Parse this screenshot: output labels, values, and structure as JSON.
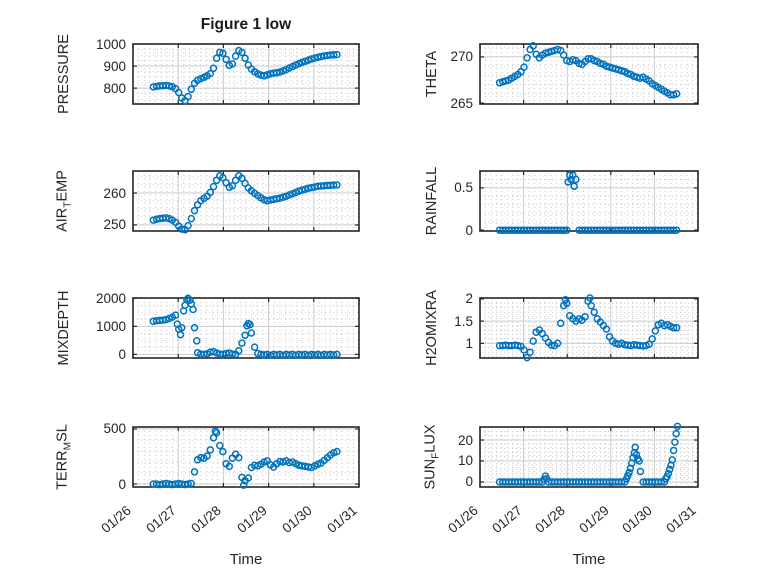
{
  "title": "Figure 1 low",
  "x_axis": {
    "label": "Time",
    "tick_labels": [
      "01/26",
      "01/27",
      "01/28",
      "01/29",
      "01/30",
      "01/31"
    ],
    "tick_positions": [
      0,
      1,
      2,
      3,
      4,
      5
    ],
    "lim": [
      0,
      5
    ],
    "minor_step": 0.125
  },
  "style": {
    "marker_color": "#0072BD",
    "axis_color": "#262626",
    "grid_color": "#cbcbcb",
    "minor_grid_color": "#c7c7c7",
    "background": "#ffffff"
  },
  "chart_data": [
    {
      "type": "scatter",
      "id": "pressure",
      "ylabel": "PRESSURE",
      "ylabel_segments": [
        {
          "t": "PRESSURE"
        }
      ],
      "yticks": [
        800,
        900,
        1000
      ],
      "ylim": [
        728,
        1000
      ],
      "y_minor_step": 25,
      "x": [
        0.45,
        0.52,
        0.59,
        0.66,
        0.73,
        0.8,
        0.87,
        0.94,
        1.01,
        1.08,
        1.15,
        1.22,
        1.29,
        1.36,
        1.43,
        1.5,
        1.57,
        1.64,
        1.71,
        1.78,
        1.85,
        1.92,
        1.99,
        2.06,
        2.13,
        2.2,
        2.27,
        2.34,
        2.41,
        2.48,
        2.55,
        2.62,
        2.69,
        2.76,
        2.83,
        2.9,
        2.97,
        3.04,
        3.11,
        3.18,
        3.25,
        3.32,
        3.39,
        3.46,
        3.53,
        3.6,
        3.67,
        3.74,
        3.81,
        3.88,
        3.95,
        4.02,
        4.09,
        4.16,
        4.23,
        4.3,
        4.37,
        4.44,
        4.51
      ],
      "y": [
        805,
        808,
        810,
        811,
        812,
        810,
        806,
        798,
        780,
        755,
        743,
        762,
        795,
        822,
        836,
        843,
        849,
        856,
        866,
        890,
        935,
        962,
        958,
        930,
        903,
        910,
        945,
        970,
        962,
        935,
        905,
        886,
        874,
        865,
        859,
        856,
        860,
        865,
        868,
        870,
        873,
        878,
        884,
        891,
        898,
        905,
        911,
        917,
        922,
        927,
        932,
        936,
        940,
        943,
        946,
        948,
        950,
        951,
        952
      ]
    },
    {
      "type": "scatter",
      "id": "theta",
      "ylabel": "THETA",
      "ylabel_segments": [
        {
          "t": "THETA"
        }
      ],
      "yticks": [
        265,
        270
      ],
      "ylim": [
        264.9,
        271.4
      ],
      "y_minor_step": 1,
      "x": [
        0.45,
        0.52,
        0.59,
        0.66,
        0.73,
        0.8,
        0.87,
        0.94,
        1.01,
        1.08,
        1.15,
        1.22,
        1.29,
        1.36,
        1.43,
        1.5,
        1.57,
        1.64,
        1.71,
        1.78,
        1.85,
        1.92,
        1.99,
        2.06,
        2.13,
        2.2,
        2.27,
        2.34,
        2.41,
        2.48,
        2.55,
        2.62,
        2.69,
        2.76,
        2.83,
        2.9,
        2.97,
        3.04,
        3.11,
        3.18,
        3.25,
        3.32,
        3.39,
        3.46,
        3.53,
        3.6,
        3.67,
        3.74,
        3.81,
        3.88,
        3.95,
        4.02,
        4.09,
        4.16,
        4.23,
        4.3,
        4.37,
        4.44,
        4.51
      ],
      "y": [
        267.2,
        267.3,
        267.4,
        267.5,
        267.7,
        267.9,
        268.1,
        268.4,
        268.9,
        269.9,
        270.8,
        271.2,
        270.3,
        269.9,
        270.2,
        270.4,
        270.5,
        270.6,
        270.7,
        270.8,
        270.7,
        270.2,
        269.6,
        269.5,
        269.7,
        269.6,
        269.3,
        269.2,
        269.5,
        269.8,
        269.8,
        269.6,
        269.5,
        269.3,
        269.2,
        269.0,
        268.9,
        268.8,
        268.7,
        268.6,
        268.5,
        268.4,
        268.2,
        268.1,
        267.9,
        267.8,
        267.7,
        267.8,
        267.6,
        267.4,
        267.1,
        266.9,
        266.7,
        266.5,
        266.3,
        266.1,
        265.9,
        265.9,
        266.0
      ]
    },
    {
      "type": "scatter",
      "id": "air-temp",
      "ylabel": "AIR_TEMP",
      "ylabel_segments": [
        {
          "t": "AIR"
        },
        {
          "sub": "T"
        },
        {
          "t": "EMP"
        }
      ],
      "yticks": [
        250,
        260
      ],
      "ylim": [
        248.1,
        266.9
      ],
      "y_minor_step": 2.5,
      "x": [
        0.45,
        0.52,
        0.59,
        0.66,
        0.73,
        0.8,
        0.87,
        0.94,
        1.01,
        1.08,
        1.15,
        1.22,
        1.29,
        1.36,
        1.43,
        1.5,
        1.57,
        1.64,
        1.71,
        1.78,
        1.85,
        1.92,
        1.99,
        2.06,
        2.13,
        2.2,
        2.27,
        2.34,
        2.41,
        2.48,
        2.55,
        2.62,
        2.69,
        2.76,
        2.83,
        2.9,
        2.97,
        3.04,
        3.11,
        3.18,
        3.25,
        3.32,
        3.39,
        3.46,
        3.53,
        3.6,
        3.67,
        3.74,
        3.81,
        3.88,
        3.95,
        4.02,
        4.09,
        4.16,
        4.23,
        4.3,
        4.37,
        4.44,
        4.51
      ],
      "y": [
        251.5,
        251.8,
        252.0,
        252.1,
        252.2,
        252.0,
        251.5,
        250.8,
        249.6,
        248.7,
        248.5,
        249.8,
        252.0,
        254.5,
        256.3,
        257.6,
        258.3,
        259.0,
        260.2,
        262.0,
        264.0,
        265.4,
        264.8,
        263.2,
        261.8,
        262.3,
        264.0,
        265.4,
        264.6,
        263.0,
        261.6,
        260.7,
        259.9,
        259.2,
        258.5,
        257.9,
        257.6,
        257.8,
        258.0,
        258.2,
        258.4,
        258.7,
        259.0,
        259.4,
        259.8,
        260.2,
        260.6,
        260.9,
        261.2,
        261.5,
        261.7,
        261.9,
        262.1,
        262.2,
        262.3,
        262.4,
        262.4,
        262.5,
        262.5
      ]
    },
    {
      "type": "scatter",
      "id": "rainfall",
      "ylabel": "RAINFALL",
      "ylabel_segments": [
        {
          "t": "RAINFALL"
        }
      ],
      "yticks": [
        0,
        0.5
      ],
      "ylim": [
        -0.01,
        0.7
      ],
      "y_minor_step": 0.1,
      "x": [
        0.45,
        0.52,
        0.59,
        0.66,
        0.73,
        0.8,
        0.87,
        0.94,
        1.01,
        1.08,
        1.15,
        1.22,
        1.29,
        1.36,
        1.43,
        1.5,
        1.57,
        1.64,
        1.71,
        1.78,
        1.85,
        1.92,
        1.99,
        2.02,
        2.06,
        2.09,
        2.13,
        2.16,
        2.2,
        2.27,
        2.34,
        2.41,
        2.48,
        2.55,
        2.62,
        2.69,
        2.76,
        2.83,
        2.9,
        2.97,
        3.04,
        3.11,
        3.18,
        3.25,
        3.32,
        3.39,
        3.46,
        3.53,
        3.6,
        3.67,
        3.74,
        3.81,
        3.88,
        3.95,
        4.02,
        4.09,
        4.16,
        4.23,
        4.3,
        4.37,
        4.44,
        4.51
      ],
      "y": [
        0,
        0,
        0,
        0,
        0,
        0,
        0,
        0,
        0,
        0,
        0,
        0,
        0,
        0,
        0,
        0,
        0,
        0,
        0,
        0,
        0,
        0,
        0,
        0.57,
        0.65,
        0.6,
        0.65,
        0.52,
        0.6,
        0,
        0,
        0,
        0,
        0,
        0,
        0,
        0,
        0,
        0,
        0,
        0,
        0,
        0,
        0,
        0,
        0,
        0,
        0,
        0,
        0,
        0,
        0,
        0,
        0,
        0,
        0,
        0,
        0,
        0,
        0,
        0,
        0
      ]
    },
    {
      "type": "scatter",
      "id": "mixdepth",
      "ylabel": "MIXDEPTH",
      "ylabel_segments": [
        {
          "t": "MIXDEPTH"
        }
      ],
      "yticks": [
        0,
        1000,
        2000
      ],
      "ylim": [
        -130,
        2010
      ],
      "y_minor_step": 250,
      "x": [
        0.45,
        0.52,
        0.59,
        0.66,
        0.73,
        0.8,
        0.87,
        0.94,
        0.98,
        1.01,
        1.05,
        1.08,
        1.12,
        1.15,
        1.19,
        1.22,
        1.26,
        1.29,
        1.33,
        1.36,
        1.41,
        1.43,
        1.5,
        1.57,
        1.64,
        1.71,
        1.78,
        1.85,
        1.92,
        1.99,
        2.06,
        2.13,
        2.2,
        2.27,
        2.34,
        2.41,
        2.48,
        2.52,
        2.55,
        2.59,
        2.62,
        2.69,
        2.76,
        2.83,
        2.9,
        2.97,
        3.04,
        3.11,
        3.18,
        3.25,
        3.32,
        3.39,
        3.46,
        3.53,
        3.6,
        3.67,
        3.74,
        3.81,
        3.88,
        3.95,
        4.02,
        4.09,
        4.16,
        4.23,
        4.3,
        4.37,
        4.44,
        4.51
      ],
      "y": [
        1180,
        1200,
        1210,
        1220,
        1240,
        1280,
        1330,
        1400,
        1080,
        900,
        700,
        950,
        1550,
        1750,
        1950,
        2000,
        1930,
        1800,
        1600,
        950,
        480,
        60,
        10,
        0,
        20,
        80,
        100,
        50,
        10,
        0,
        30,
        50,
        10,
        0,
        130,
        400,
        680,
        1020,
        1100,
        1060,
        760,
        260,
        30,
        0,
        -20,
        0,
        -30,
        0,
        -20,
        0,
        -30,
        0,
        -20,
        0,
        -30,
        0,
        -20,
        0,
        -30,
        0,
        -20,
        0,
        -30,
        0,
        -20,
        0,
        -20,
        0
      ]
    },
    {
      "type": "scatter",
      "id": "h2omixra",
      "ylabel": "H2OMIXRA",
      "ylabel_segments": [
        {
          "t": "H2OMIXRA"
        }
      ],
      "yticks": [
        1,
        1.5,
        2
      ],
      "ylim": [
        0.67,
        2.02
      ],
      "y_minor_step": 0.1,
      "x": [
        0.45,
        0.52,
        0.59,
        0.66,
        0.73,
        0.8,
        0.87,
        0.94,
        1.01,
        1.08,
        1.15,
        1.22,
        1.29,
        1.36,
        1.43,
        1.5,
        1.57,
        1.64,
        1.71,
        1.78,
        1.85,
        1.92,
        1.96,
        1.99,
        2.06,
        2.13,
        2.2,
        2.27,
        2.34,
        2.41,
        2.48,
        2.52,
        2.55,
        2.62,
        2.69,
        2.76,
        2.83,
        2.9,
        2.97,
        3.04,
        3.11,
        3.18,
        3.25,
        3.32,
        3.39,
        3.46,
        3.53,
        3.6,
        3.67,
        3.74,
        3.81,
        3.88,
        3.95,
        4.02,
        4.09,
        4.16,
        4.23,
        4.3,
        4.37,
        4.44,
        4.51
      ],
      "y": [
        0.95,
        0.95,
        0.96,
        0.95,
        0.95,
        0.96,
        0.95,
        0.93,
        0.85,
        0.68,
        0.8,
        1.05,
        1.25,
        1.3,
        1.22,
        1.12,
        1.02,
        0.96,
        0.95,
        1.0,
        1.45,
        1.85,
        1.98,
        1.9,
        1.62,
        1.55,
        1.5,
        1.55,
        1.52,
        1.6,
        1.95,
        2.02,
        1.85,
        1.7,
        1.55,
        1.48,
        1.4,
        1.32,
        1.15,
        1.05,
        1.0,
        0.98,
        1.0,
        0.97,
        0.96,
        0.95,
        0.97,
        0.96,
        0.95,
        0.94,
        0.95,
        0.98,
        1.1,
        1.28,
        1.42,
        1.45,
        1.4,
        1.42,
        1.38,
        1.35,
        1.35
      ]
    },
    {
      "type": "scatter",
      "id": "terr-msl",
      "ylabel": "TERR_MSL",
      "ylabel_segments": [
        {
          "t": "TERR"
        },
        {
          "sub": "M"
        },
        {
          "t": "SL"
        }
      ],
      "yticks": [
        0,
        500
      ],
      "ylim": [
        -27,
        518
      ],
      "y_minor_step": 100,
      "x": [
        0.45,
        0.52,
        0.59,
        0.66,
        0.73,
        0.8,
        0.87,
        0.94,
        1.01,
        1.08,
        1.15,
        1.22,
        1.29,
        1.36,
        1.43,
        1.5,
        1.57,
        1.64,
        1.71,
        1.78,
        1.82,
        1.85,
        1.92,
        1.99,
        2.06,
        2.13,
        2.2,
        2.27,
        2.34,
        2.41,
        2.45,
        2.48,
        2.55,
        2.62,
        2.69,
        2.76,
        2.83,
        2.9,
        2.97,
        3.04,
        3.11,
        3.18,
        3.25,
        3.32,
        3.39,
        3.46,
        3.53,
        3.6,
        3.67,
        3.74,
        3.81,
        3.88,
        3.95,
        4.02,
        4.09,
        4.16,
        4.23,
        4.3,
        4.37,
        4.44,
        4.51
      ],
      "y": [
        0,
        0,
        -5,
        0,
        5,
        0,
        -5,
        0,
        5,
        0,
        -5,
        0,
        5,
        110,
        220,
        240,
        235,
        255,
        310,
        420,
        480,
        465,
        350,
        295,
        185,
        160,
        235,
        270,
        240,
        60,
        -10,
        30,
        55,
        150,
        170,
        165,
        180,
        200,
        210,
        175,
        155,
        185,
        205,
        200,
        210,
        195,
        200,
        185,
        170,
        165,
        160,
        155,
        150,
        165,
        180,
        190,
        215,
        240,
        265,
        285,
        295
      ]
    },
    {
      "type": "scatter",
      "id": "sun-flux",
      "ylabel": "SUN_FLUX",
      "ylabel_segments": [
        {
          "t": "SUN"
        },
        {
          "sub": "F"
        },
        {
          "t": "LUX"
        }
      ],
      "yticks": [
        0,
        10,
        20
      ],
      "ylim": [
        -2.4,
        26.2
      ],
      "y_minor_step": 2,
      "x": [
        0.45,
        0.52,
        0.59,
        0.66,
        0.73,
        0.8,
        0.87,
        0.94,
        1.01,
        1.08,
        1.15,
        1.22,
        1.29,
        1.36,
        1.43,
        1.47,
        1.5,
        1.53,
        1.57,
        1.64,
        1.71,
        1.78,
        1.85,
        1.92,
        1.99,
        2.06,
        2.13,
        2.2,
        2.27,
        2.34,
        2.41,
        2.48,
        2.55,
        2.62,
        2.69,
        2.76,
        2.83,
        2.9,
        2.97,
        3.04,
        3.11,
        3.18,
        3.25,
        3.32,
        3.36,
        3.39,
        3.42,
        3.45,
        3.48,
        3.51,
        3.54,
        3.56,
        3.59,
        3.62,
        3.65,
        3.68,
        3.74,
        3.81,
        3.88,
        3.95,
        4.02,
        4.09,
        4.16,
        4.23,
        4.26,
        4.29,
        4.32,
        4.35,
        4.38,
        4.41,
        4.44,
        4.47,
        4.5,
        4.53
      ],
      "y": [
        0,
        0,
        0,
        0,
        0,
        0,
        0,
        0,
        0,
        0,
        0,
        0,
        0,
        0,
        0,
        1.2,
        2.8,
        1.5,
        0,
        0,
        0,
        0,
        0,
        0,
        0,
        0,
        0,
        0,
        0,
        0,
        0,
        0,
        0,
        0,
        0,
        0,
        0,
        0,
        0,
        0,
        0,
        0,
        0,
        0,
        1.5,
        3,
        4.5,
        6.5,
        9,
        11.5,
        14,
        16.5,
        13,
        11,
        10,
        5,
        0,
        0,
        0,
        0,
        0,
        0,
        0,
        0,
        1.5,
        2.5,
        4,
        6,
        8,
        10.5,
        15,
        19,
        23,
        26.5
      ]
    }
  ]
}
